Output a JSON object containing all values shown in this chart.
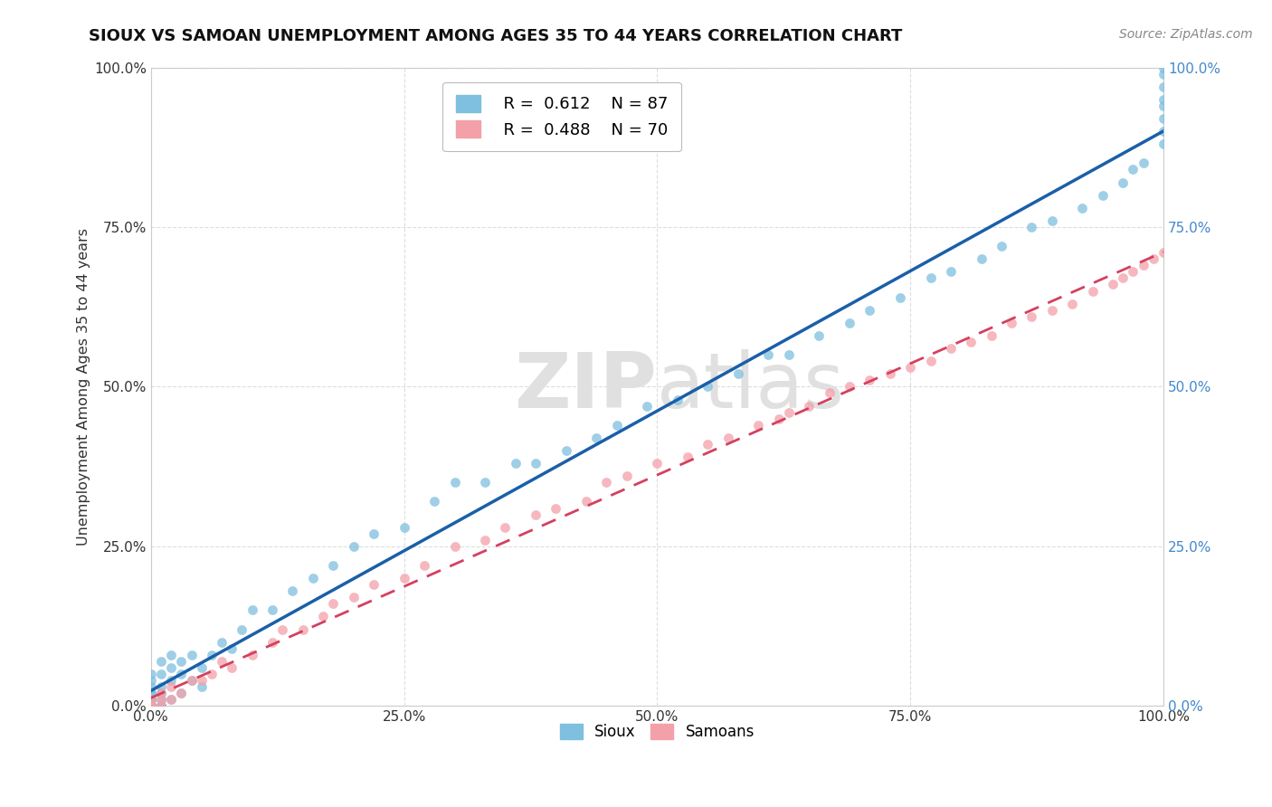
{
  "title": "SIOUX VS SAMOAN UNEMPLOYMENT AMONG AGES 35 TO 44 YEARS CORRELATION CHART",
  "source": "Source: ZipAtlas.com",
  "ylabel": "Unemployment Among Ages 35 to 44 years",
  "xlim": [
    0,
    1
  ],
  "ylim": [
    0,
    1
  ],
  "xticks": [
    0.0,
    0.25,
    0.5,
    0.75,
    1.0
  ],
  "yticks": [
    0.0,
    0.25,
    0.5,
    0.75,
    1.0
  ],
  "xticklabels": [
    "0.0%",
    "25.0%",
    "50.0%",
    "75.0%",
    "100.0%"
  ],
  "yticklabels": [
    "0.0%",
    "25.0%",
    "50.0%",
    "75.0%",
    "100.0%"
  ],
  "sioux_color": "#7fbfdf",
  "samoan_color": "#f4a0a8",
  "sioux_line_color": "#1a5fa8",
  "samoan_line_color": "#d44060",
  "R_sioux": 0.612,
  "N_sioux": 87,
  "R_samoan": 0.488,
  "N_samoan": 70,
  "watermark_zip": "ZIP",
  "watermark_atlas": "atlas",
  "bg_color": "#ffffff",
  "grid_color": "#dddddd",
  "title_fontsize": 13,
  "sioux_x": [
    0.0,
    0.0,
    0.0,
    0.0,
    0.0,
    0.0,
    0.0,
    0.0,
    0.0,
    0.0,
    0.0,
    0.0,
    0.0,
    0.0,
    0.0,
    0.0,
    0.0,
    0.0,
    0.0,
    0.0,
    0.01,
    0.01,
    0.01,
    0.01,
    0.01,
    0.01,
    0.01,
    0.02,
    0.02,
    0.02,
    0.02,
    0.03,
    0.03,
    0.03,
    0.04,
    0.04,
    0.05,
    0.05,
    0.06,
    0.07,
    0.08,
    0.09,
    0.1,
    0.12,
    0.14,
    0.16,
    0.18,
    0.2,
    0.22,
    0.25,
    0.28,
    0.3,
    0.33,
    0.36,
    0.38,
    0.41,
    0.44,
    0.46,
    0.49,
    0.52,
    0.55,
    0.58,
    0.61,
    0.63,
    0.66,
    0.69,
    0.71,
    0.74,
    0.77,
    0.79,
    0.82,
    0.84,
    0.87,
    0.89,
    0.92,
    0.94,
    0.96,
    0.97,
    0.98,
    1.0,
    1.0,
    1.0,
    1.0,
    1.0,
    1.0,
    1.0,
    1.0
  ],
  "sioux_y": [
    0.0,
    0.0,
    0.0,
    0.0,
    0.0,
    0.0,
    0.0,
    0.0,
    0.0,
    0.0,
    0.0,
    0.0,
    0.01,
    0.01,
    0.01,
    0.02,
    0.02,
    0.03,
    0.04,
    0.05,
    0.0,
    0.0,
    0.01,
    0.02,
    0.03,
    0.05,
    0.07,
    0.01,
    0.04,
    0.06,
    0.08,
    0.02,
    0.05,
    0.07,
    0.04,
    0.08,
    0.03,
    0.06,
    0.08,
    0.1,
    0.09,
    0.12,
    0.15,
    0.15,
    0.18,
    0.2,
    0.22,
    0.25,
    0.27,
    0.28,
    0.32,
    0.35,
    0.35,
    0.38,
    0.38,
    0.4,
    0.42,
    0.44,
    0.47,
    0.48,
    0.5,
    0.52,
    0.55,
    0.55,
    0.58,
    0.6,
    0.62,
    0.64,
    0.67,
    0.68,
    0.7,
    0.72,
    0.75,
    0.76,
    0.78,
    0.8,
    0.82,
    0.84,
    0.85,
    0.88,
    0.9,
    0.92,
    0.94,
    0.95,
    0.97,
    0.99,
    1.0
  ],
  "samoan_x": [
    0.0,
    0.0,
    0.0,
    0.0,
    0.0,
    0.0,
    0.0,
    0.0,
    0.0,
    0.0,
    0.0,
    0.0,
    0.0,
    0.01,
    0.01,
    0.01,
    0.02,
    0.02,
    0.03,
    0.04,
    0.05,
    0.06,
    0.07,
    0.08,
    0.1,
    0.12,
    0.13,
    0.15,
    0.17,
    0.18,
    0.2,
    0.22,
    0.25,
    0.27,
    0.3,
    0.33,
    0.35,
    0.38,
    0.4,
    0.43,
    0.45,
    0.47,
    0.5,
    0.53,
    0.55,
    0.57,
    0.6,
    0.62,
    0.63,
    0.65,
    0.67,
    0.69,
    0.71,
    0.73,
    0.75,
    0.77,
    0.79,
    0.81,
    0.83,
    0.85,
    0.87,
    0.89,
    0.91,
    0.93,
    0.95,
    0.96,
    0.97,
    0.98,
    0.99,
    1.0
  ],
  "samoan_y": [
    0.0,
    0.0,
    0.0,
    0.0,
    0.0,
    0.0,
    0.0,
    0.0,
    0.0,
    0.0,
    0.0,
    0.0,
    0.01,
    0.0,
    0.01,
    0.02,
    0.01,
    0.03,
    0.02,
    0.04,
    0.04,
    0.05,
    0.07,
    0.06,
    0.08,
    0.1,
    0.12,
    0.12,
    0.14,
    0.16,
    0.17,
    0.19,
    0.2,
    0.22,
    0.25,
    0.26,
    0.28,
    0.3,
    0.31,
    0.32,
    0.35,
    0.36,
    0.38,
    0.39,
    0.41,
    0.42,
    0.44,
    0.45,
    0.46,
    0.47,
    0.49,
    0.5,
    0.51,
    0.52,
    0.53,
    0.54,
    0.56,
    0.57,
    0.58,
    0.6,
    0.61,
    0.62,
    0.63,
    0.65,
    0.66,
    0.67,
    0.68,
    0.69,
    0.7,
    0.71
  ]
}
